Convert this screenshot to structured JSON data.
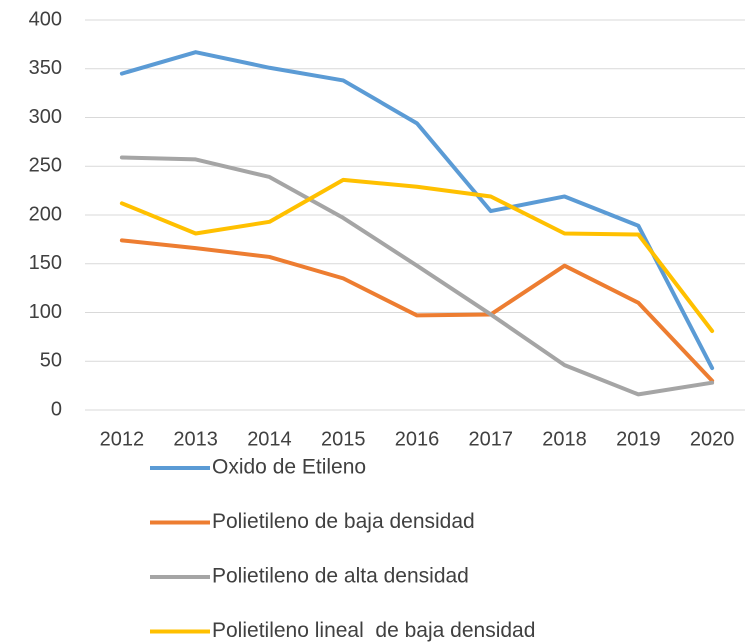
{
  "chart_data": {
    "type": "line",
    "categories": [
      "2012",
      "2013",
      "2014",
      "2015",
      "2016",
      "2017",
      "2018",
      "2019",
      "2020"
    ],
    "series": [
      {
        "name": "Oxido de Etileno",
        "color": "#5b9bd5",
        "values": [
          345,
          367,
          351,
          338,
          294,
          204,
          219,
          189,
          43
        ]
      },
      {
        "name": "Polietileno de baja densidad",
        "color": "#ed7d31",
        "values": [
          174,
          166,
          157,
          135,
          97,
          98,
          148,
          110,
          30
        ]
      },
      {
        "name": "Polietileno de alta densidad",
        "color": "#a5a5a5",
        "values": [
          259,
          257,
          239,
          197,
          148,
          98,
          46,
          16,
          28
        ]
      },
      {
        "name": "Polietileno lineal  de baja densidad",
        "color": "#ffc000",
        "values": [
          212,
          181,
          193,
          236,
          229,
          219,
          181,
          180,
          81
        ]
      }
    ],
    "ylim": [
      0,
      400
    ],
    "yticks": [
      0,
      50,
      100,
      150,
      200,
      250,
      300,
      350,
      400
    ],
    "grid": true,
    "legend": "bottom"
  }
}
